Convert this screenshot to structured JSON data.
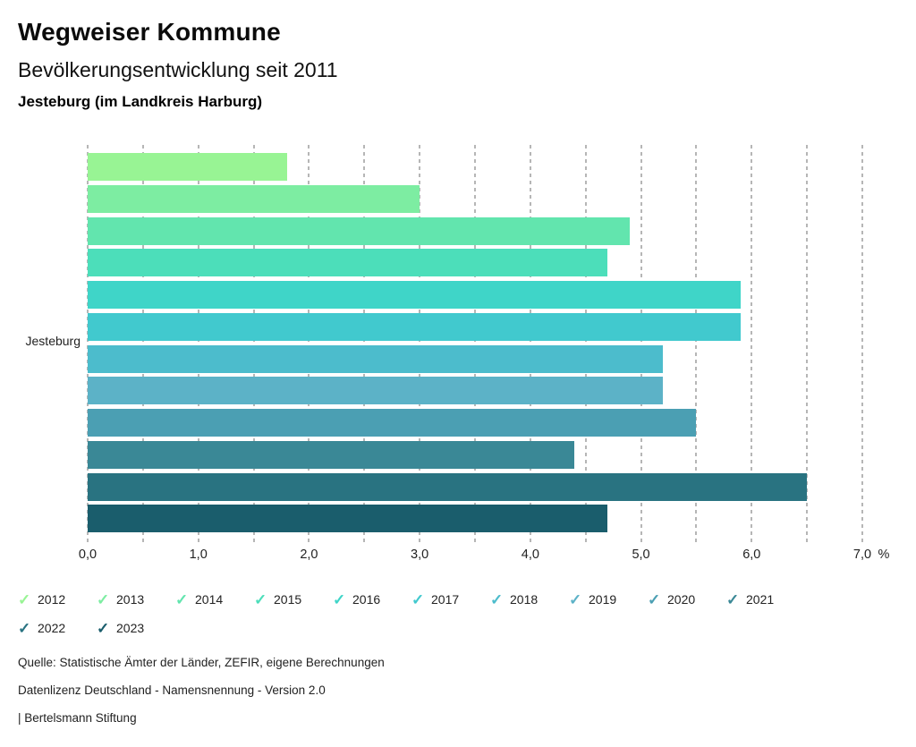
{
  "header": {
    "title": "Wegweiser Kommune",
    "subtitle": "Bevölkerungsentwicklung seit 2011",
    "region": "Jesteburg (im Landkreis Harburg)"
  },
  "chart_data": {
    "type": "bar",
    "orientation": "horizontal",
    "title": "Bevölkerungsentwicklung seit 2011",
    "category_label": "Jesteburg",
    "unit": "%",
    "xlim": [
      0,
      7
    ],
    "grid": true,
    "grid_step": 0.5,
    "x_tick_values": [
      0,
      1,
      2,
      3,
      4,
      5,
      6,
      7
    ],
    "x_tick_labels": [
      "0,0",
      "1,0",
      "2,0",
      "3,0",
      "4,0",
      "5,0",
      "6,0",
      "7,0"
    ],
    "legend_position": "bottom",
    "series": [
      {
        "name": "2012",
        "value": 1.8,
        "color": "#98F494"
      },
      {
        "name": "2013",
        "value": 3.0,
        "color": "#7DEDA2"
      },
      {
        "name": "2014",
        "value": 4.9,
        "color": "#62E5AE"
      },
      {
        "name": "2015",
        "value": 4.7,
        "color": "#4CDEBA"
      },
      {
        "name": "2016",
        "value": 5.9,
        "color": "#3FD5C8"
      },
      {
        "name": "2017",
        "value": 5.9,
        "color": "#41C9CE"
      },
      {
        "name": "2018",
        "value": 5.2,
        "color": "#4CBCCC"
      },
      {
        "name": "2019",
        "value": 5.2,
        "color": "#5CB2C7"
      },
      {
        "name": "2020",
        "value": 5.5,
        "color": "#4B9FB3"
      },
      {
        "name": "2021",
        "value": 4.4,
        "color": "#3A8896"
      },
      {
        "name": "2022",
        "value": 6.5,
        "color": "#297381"
      },
      {
        "name": "2023",
        "value": 4.7,
        "color": "#1A5D6C"
      }
    ]
  },
  "legend": {
    "check_icon": "✓"
  },
  "footer": {
    "source": "Quelle: Statistische Ämter der Länder, ZEFIR, eigene Berechnungen",
    "license": "Datenlizenz Deutschland - Namensnennung - Version 2.0",
    "attribution": "| Bertelsmann Stiftung"
  },
  "colors": {
    "grid": "#B6B6B6",
    "text": "#222222",
    "title": "#0B0B0B"
  }
}
